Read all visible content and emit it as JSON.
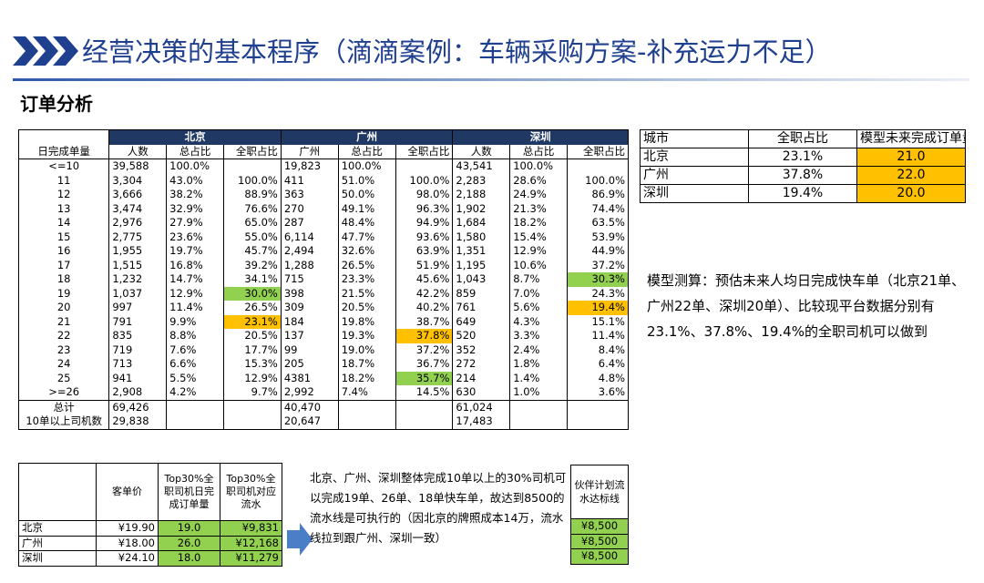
{
  "header": {
    "title": "经营决策的基本程序（滴滴案例：车辆采购方案-补充运力不足）",
    "subtitle": "订单分析"
  },
  "main_table": {
    "groups": [
      "北京",
      "广州",
      "深圳"
    ],
    "columns": [
      "日完成单量",
      "人数",
      "总占比",
      "全职占比",
      "广州",
      "总占比",
      "全职占比",
      "人数",
      "总占比",
      "全职占比"
    ],
    "rows": [
      [
        "<=10",
        "39,588",
        "100.0%",
        null,
        "19,823",
        "100.0%",
        null,
        "43,541",
        "100.0%",
        null
      ],
      [
        "11",
        "3,304",
        "43.0%",
        "100.0%",
        "411",
        "51.0%",
        "100.0%",
        "2,283",
        "28.6%",
        "100.0%"
      ],
      [
        "12",
        "3,666",
        "38.2%",
        "88.9%",
        "363",
        "50.0%",
        "98.0%",
        "2,188",
        "24.9%",
        "86.9%"
      ],
      [
        "13",
        "3,474",
        "32.9%",
        "76.6%",
        "270",
        "49.1%",
        "96.3%",
        "1,902",
        "21.3%",
        "74.4%"
      ],
      [
        "14",
        "2,976",
        "27.9%",
        "65.0%",
        "287",
        "48.4%",
        "94.9%",
        "1,684",
        "18.2%",
        "63.5%"
      ],
      [
        "15",
        "2,775",
        "23.6%",
        "55.0%",
        "6,114",
        "47.7%",
        "93.6%",
        "1,580",
        "15.4%",
        "53.9%"
      ],
      [
        "16",
        "1,955",
        "19.7%",
        "45.7%",
        "2,494",
        "32.6%",
        "63.9%",
        "1,351",
        "12.9%",
        "44.9%"
      ],
      [
        "17",
        "1,515",
        "16.8%",
        "39.2%",
        "1,288",
        "26.5%",
        "51.9%",
        "1,195",
        "10.6%",
        "37.2%"
      ],
      [
        "18",
        "1,232",
        "14.7%",
        "34.1%",
        "715",
        "23.3%",
        "45.6%",
        "1,043",
        "8.7%",
        "30.3%"
      ],
      [
        "19",
        "1,037",
        "12.9%",
        "30.0%",
        "398",
        "21.5%",
        "42.2%",
        "859",
        "7.0%",
        "24.3%"
      ],
      [
        "20",
        "997",
        "11.4%",
        "26.5%",
        "309",
        "20.5%",
        "40.2%",
        "761",
        "5.6%",
        "19.4%"
      ],
      [
        "21",
        "791",
        "9.9%",
        "23.1%",
        "184",
        "19.8%",
        "38.7%",
        "649",
        "4.3%",
        "15.1%"
      ],
      [
        "22",
        "835",
        "8.8%",
        "20.5%",
        "137",
        "19.3%",
        "37.8%",
        "520",
        "3.3%",
        "11.4%"
      ],
      [
        "23",
        "719",
        "7.6%",
        "17.7%",
        "99",
        "19.0%",
        "37.2%",
        "352",
        "2.4%",
        "8.4%"
      ],
      [
        "24",
        "713",
        "6.6%",
        "15.3%",
        "205",
        "18.7%",
        "36.7%",
        "272",
        "1.8%",
        "6.4%"
      ],
      [
        "25",
        "941",
        "5.5%",
        "12.9%",
        "4381",
        "18.2%",
        "35.7%",
        "214",
        "1.4%",
        "4.8%"
      ],
      [
        ">=26",
        "2,908",
        "4.2%",
        "9.7%",
        "2,992",
        "7.4%",
        "14.5%",
        "630",
        "1.0%",
        "3.6%"
      ],
      [
        "总计",
        "69,426",
        null,
        null,
        "40,470",
        null,
        null,
        "61,024",
        null,
        null
      ],
      [
        "10单以上司机数",
        "29,838",
        null,
        null,
        "20,647",
        null,
        null,
        "17,483",
        null,
        null
      ]
    ]
  },
  "city_table": {
    "columns": [
      "城市",
      "全职占比",
      "模型未来完成订单量"
    ],
    "rows": [
      [
        "北京",
        "23.1%",
        "21.0"
      ],
      [
        "广州",
        "37.8%",
        "22.0"
      ],
      [
        "深圳",
        "19.4%",
        "20.0"
      ]
    ]
  },
  "note": "模型测算：预估未来人均日完成快车单（北京21单、广州22单、深圳20单）、比较现平台数据分别有23.1%、37.8%、19.4%的全职司机可以做到",
  "price_table": {
    "columns": [
      "客单价",
      "Top30%全职司机日完成订单量",
      "Top30%全职司机对应流水"
    ],
    "rows": [
      [
        "北京",
        "¥19.90",
        "19.0",
        "¥9,831"
      ],
      [
        "广州",
        "¥18.00",
        "26.0",
        "¥12,168"
      ],
      [
        "深圳",
        "¥24.10",
        "18.0",
        "¥11,279"
      ]
    ]
  },
  "arrow_text": "北京、广州、深圳整体完成10单以上的30%司机可以完成19单、26单、18单快车单，故达到8500的流水线是可执行的（因北京的牌照成本14万，流水线拉到跟广州、深圳一致）",
  "target_table": {
    "header": "伙伴计划流水达标线",
    "rows": [
      "¥8,500",
      "¥8,500",
      "¥8,500"
    ]
  }
}
